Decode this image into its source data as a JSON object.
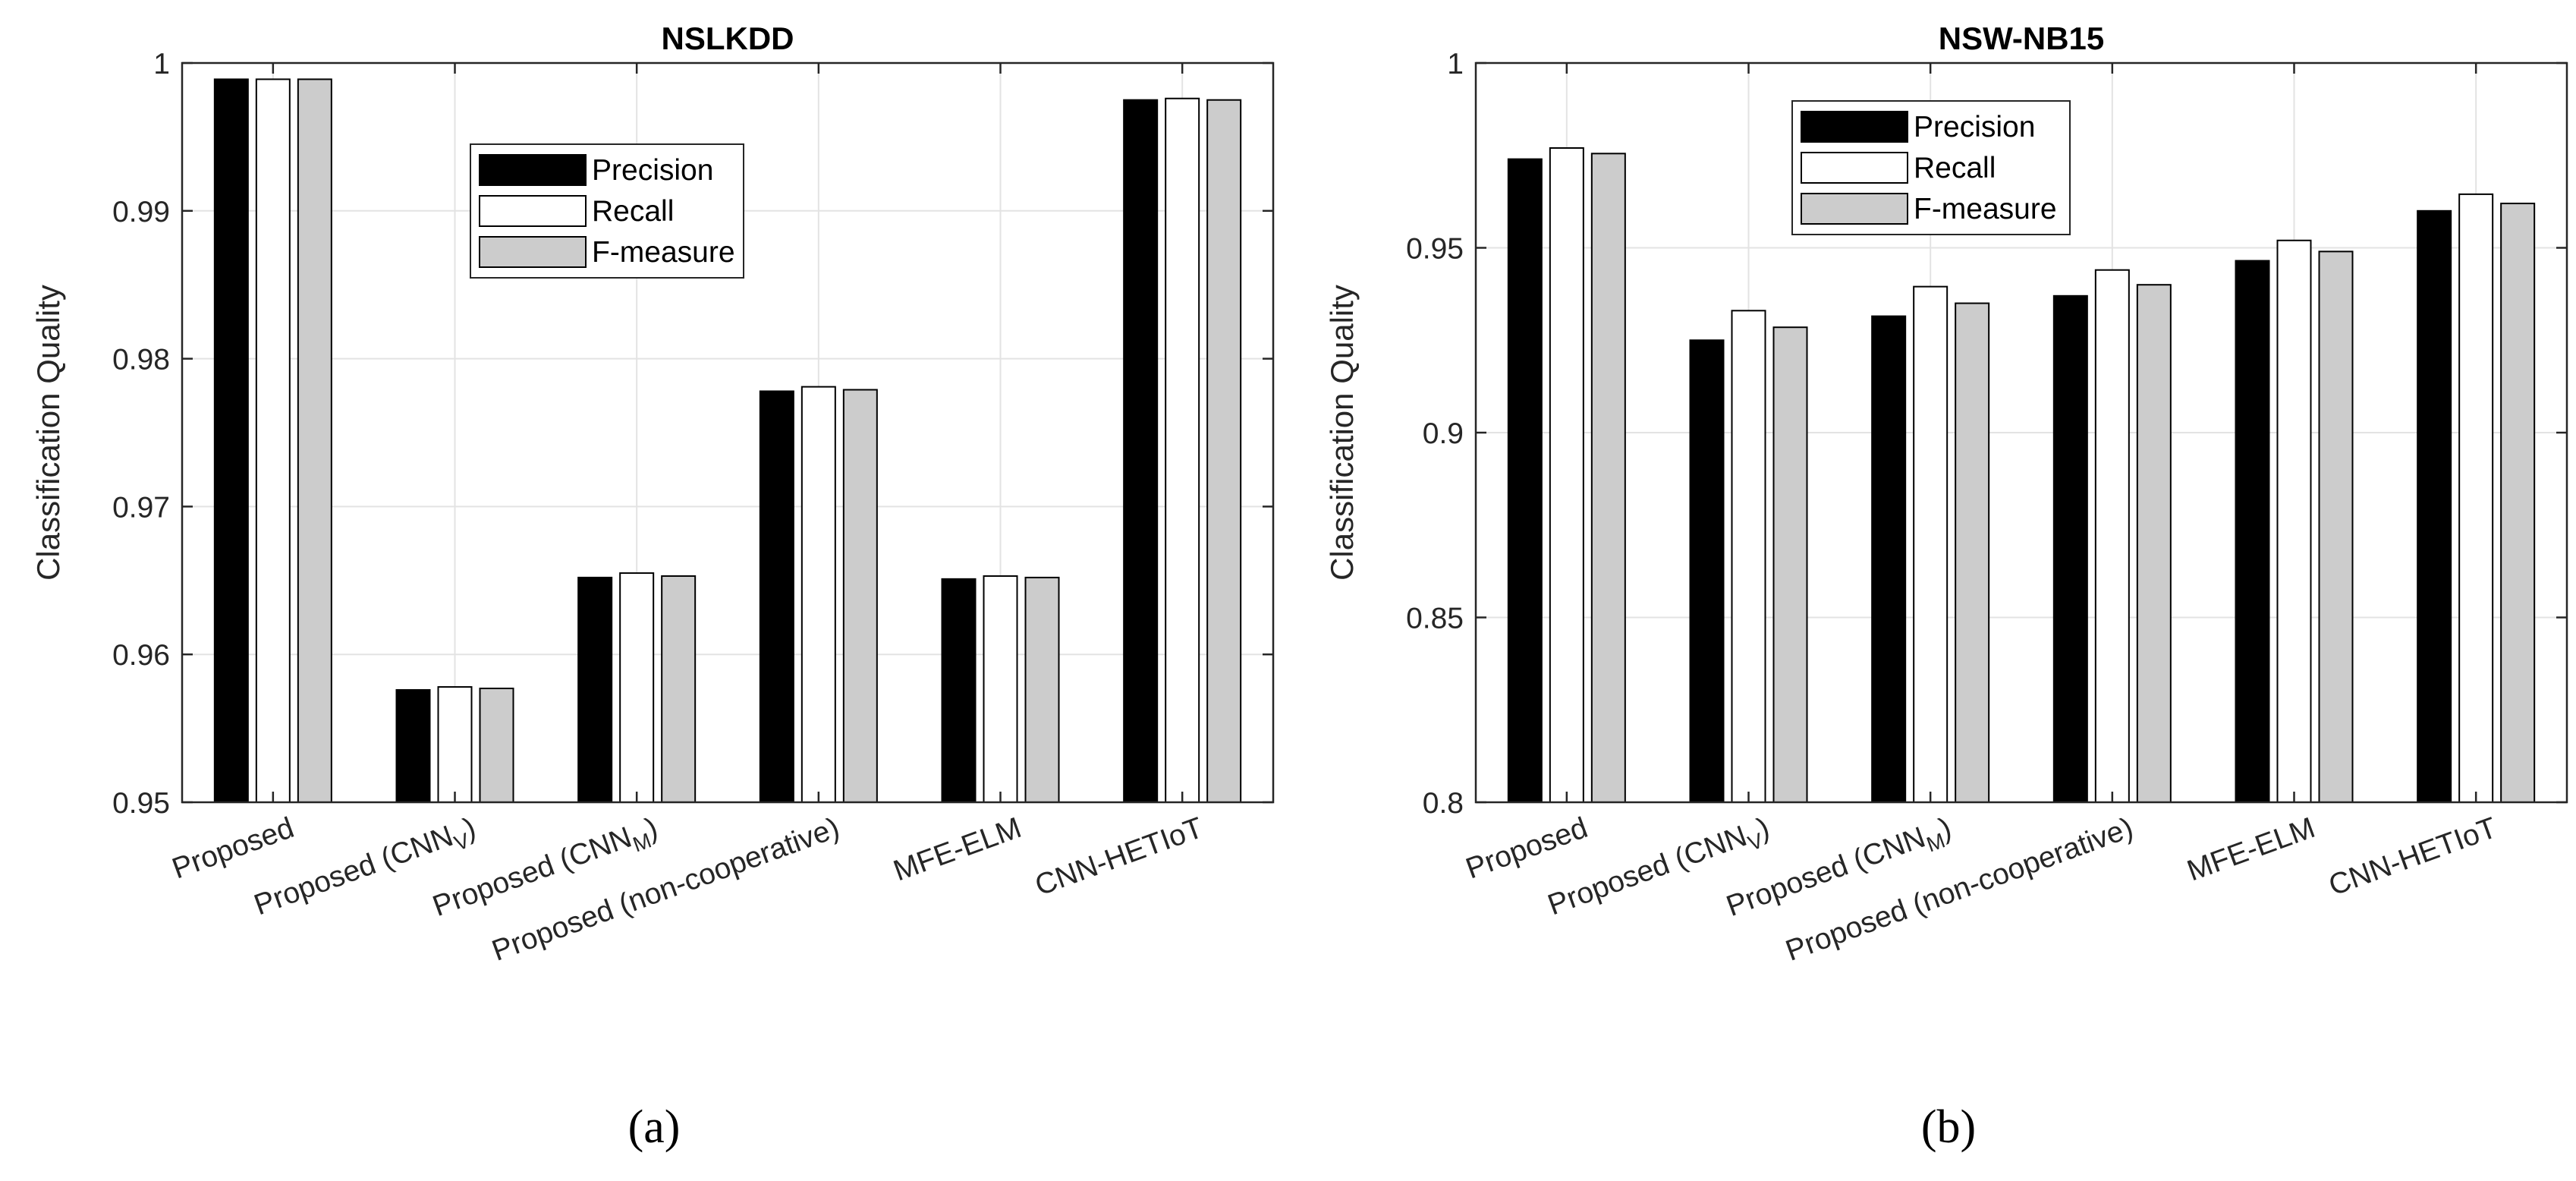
{
  "chart_data": [
    {
      "type": "bar",
      "title": "NSLKDD",
      "panel_label": "(a)",
      "xlabel": "",
      "ylabel": "Classification Quality",
      "ylim": [
        0.95,
        1.0
      ],
      "yticks": [
        0.95,
        0.96,
        0.97,
        0.98,
        0.99,
        1.0
      ],
      "ytick_labels": [
        "0.95",
        "0.96",
        "0.97",
        "0.98",
        "0.99",
        "1"
      ],
      "grid": true,
      "legend_position": "top-center",
      "categories": [
        {
          "text": "Proposed",
          "sub": "",
          "post": ""
        },
        {
          "text": "Proposed (CNN",
          "sub": "V",
          "post": ")"
        },
        {
          "text": "Proposed (CNN",
          "sub": "M",
          "post": ")"
        },
        {
          "text": "Proposed (non-cooperative)",
          "sub": "",
          "post": ""
        },
        {
          "text": "MFE-ELM",
          "sub": "",
          "post": ""
        },
        {
          "text": "CNN-HETIoT",
          "sub": "",
          "post": ""
        }
      ],
      "series": [
        {
          "name": "Precision",
          "color": "#000000",
          "values": [
            0.9989,
            0.9576,
            0.9652,
            0.9778,
            0.9651,
            0.9975
          ]
        },
        {
          "name": "Recall",
          "color": "#ffffff",
          "values": [
            0.9989,
            0.9578,
            0.9655,
            0.9781,
            0.9653,
            0.9976
          ]
        },
        {
          "name": "F-measure",
          "color": "#cccccc",
          "values": [
            0.9989,
            0.9577,
            0.9653,
            0.9779,
            0.9652,
            0.9975
          ]
        }
      ]
    },
    {
      "type": "bar",
      "title": "NSW-NB15",
      "panel_label": "(b)",
      "xlabel": "",
      "ylabel": "Classification Quality",
      "ylim": [
        0.8,
        1.0
      ],
      "yticks": [
        0.8,
        0.85,
        0.9,
        0.95,
        1.0
      ],
      "ytick_labels": [
        "0.8",
        "0.85",
        "0.9",
        "0.95",
        "1"
      ],
      "grid": true,
      "legend_position": "top-center",
      "categories": [
        {
          "text": "Proposed",
          "sub": "",
          "post": ""
        },
        {
          "text": "Proposed (CNN",
          "sub": "V",
          "post": ")"
        },
        {
          "text": "Proposed (CNN",
          "sub": "M",
          "post": ")"
        },
        {
          "text": "Proposed (non-cooperative)",
          "sub": "",
          "post": ""
        },
        {
          "text": "MFE-ELM",
          "sub": "",
          "post": ""
        },
        {
          "text": "CNN-HETIoT",
          "sub": "",
          "post": ""
        }
      ],
      "series": [
        {
          "name": "Precision",
          "color": "#000000",
          "values": [
            0.974,
            0.925,
            0.9315,
            0.937,
            0.9465,
            0.96
          ]
        },
        {
          "name": "Recall",
          "color": "#ffffff",
          "values": [
            0.977,
            0.933,
            0.9395,
            0.944,
            0.952,
            0.9645
          ]
        },
        {
          "name": "F-measure",
          "color": "#cccccc",
          "values": [
            0.9755,
            0.9285,
            0.935,
            0.94,
            0.949,
            0.962
          ]
        }
      ]
    }
  ]
}
